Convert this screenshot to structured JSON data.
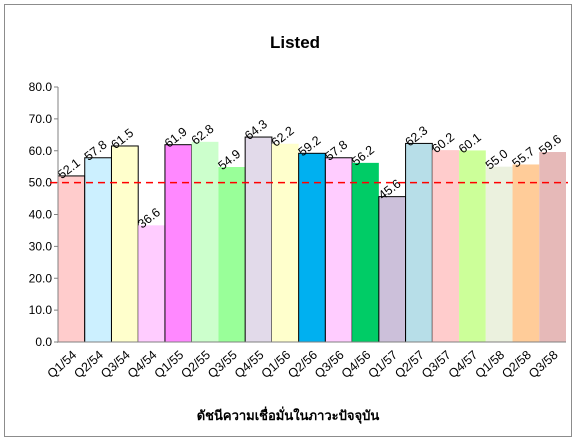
{
  "chart_data": {
    "type": "bar",
    "title": "Listed",
    "xlabel": "ดัชนีความเชื่อมั่นในภาวะปัจจุบัน",
    "ylabel": "",
    "ylim": [
      0,
      80
    ],
    "yticks": [
      "0.0",
      "10.0",
      "20.0",
      "30.0",
      "40.0",
      "50.0",
      "60.0",
      "70.0",
      "80.0"
    ],
    "categories": [
      "Q1/54",
      "Q2/54",
      "Q3/54",
      "Q4/54",
      "Q1/55",
      "Q2/55",
      "Q3/55",
      "Q4/55",
      "Q1/56",
      "Q2/56",
      "Q3/56",
      "Q4/56",
      "Q1/57",
      "Q2/57",
      "Q3/57",
      "Q4/57",
      "Q1/58",
      "Q2/58",
      "Q3/58"
    ],
    "values": [
      52.1,
      57.8,
      61.5,
      36.6,
      61.9,
      62.8,
      54.9,
      64.3,
      62.2,
      59.2,
      57.8,
      56.2,
      45.6,
      62.3,
      60.2,
      60.1,
      55.0,
      55.7,
      59.6
    ],
    "value_labels": [
      "52.1",
      "57.8",
      "61.5",
      "36.6",
      "61.9",
      "62.8",
      "54.9",
      "64.3",
      "62.2",
      "59.2",
      "57.8",
      "56.2",
      "45.6",
      "62.3",
      "60.2",
      "60.1",
      "55.0",
      "55.7",
      "59.6"
    ],
    "bar_colors": [
      "#FFCCCC",
      "#CCF0FF",
      "#FFFFCC",
      "#FFCCFF",
      "#FF88FF",
      "#CCFFCC",
      "#99FF99",
      "#E2DAEA",
      "#FFFFCC",
      "#00B0F0",
      "#FFCCFF",
      "#00CC66",
      "#CCC0DA",
      "#B7DEE8",
      "#FFCCCC",
      "#CCFF99",
      "#EBF1DE",
      "#FFCC99",
      "#E6B9B8"
    ],
    "reference_line": {
      "value": 50,
      "color": "#FF0000",
      "style": "dashed"
    },
    "grid": false,
    "legend": "none"
  }
}
